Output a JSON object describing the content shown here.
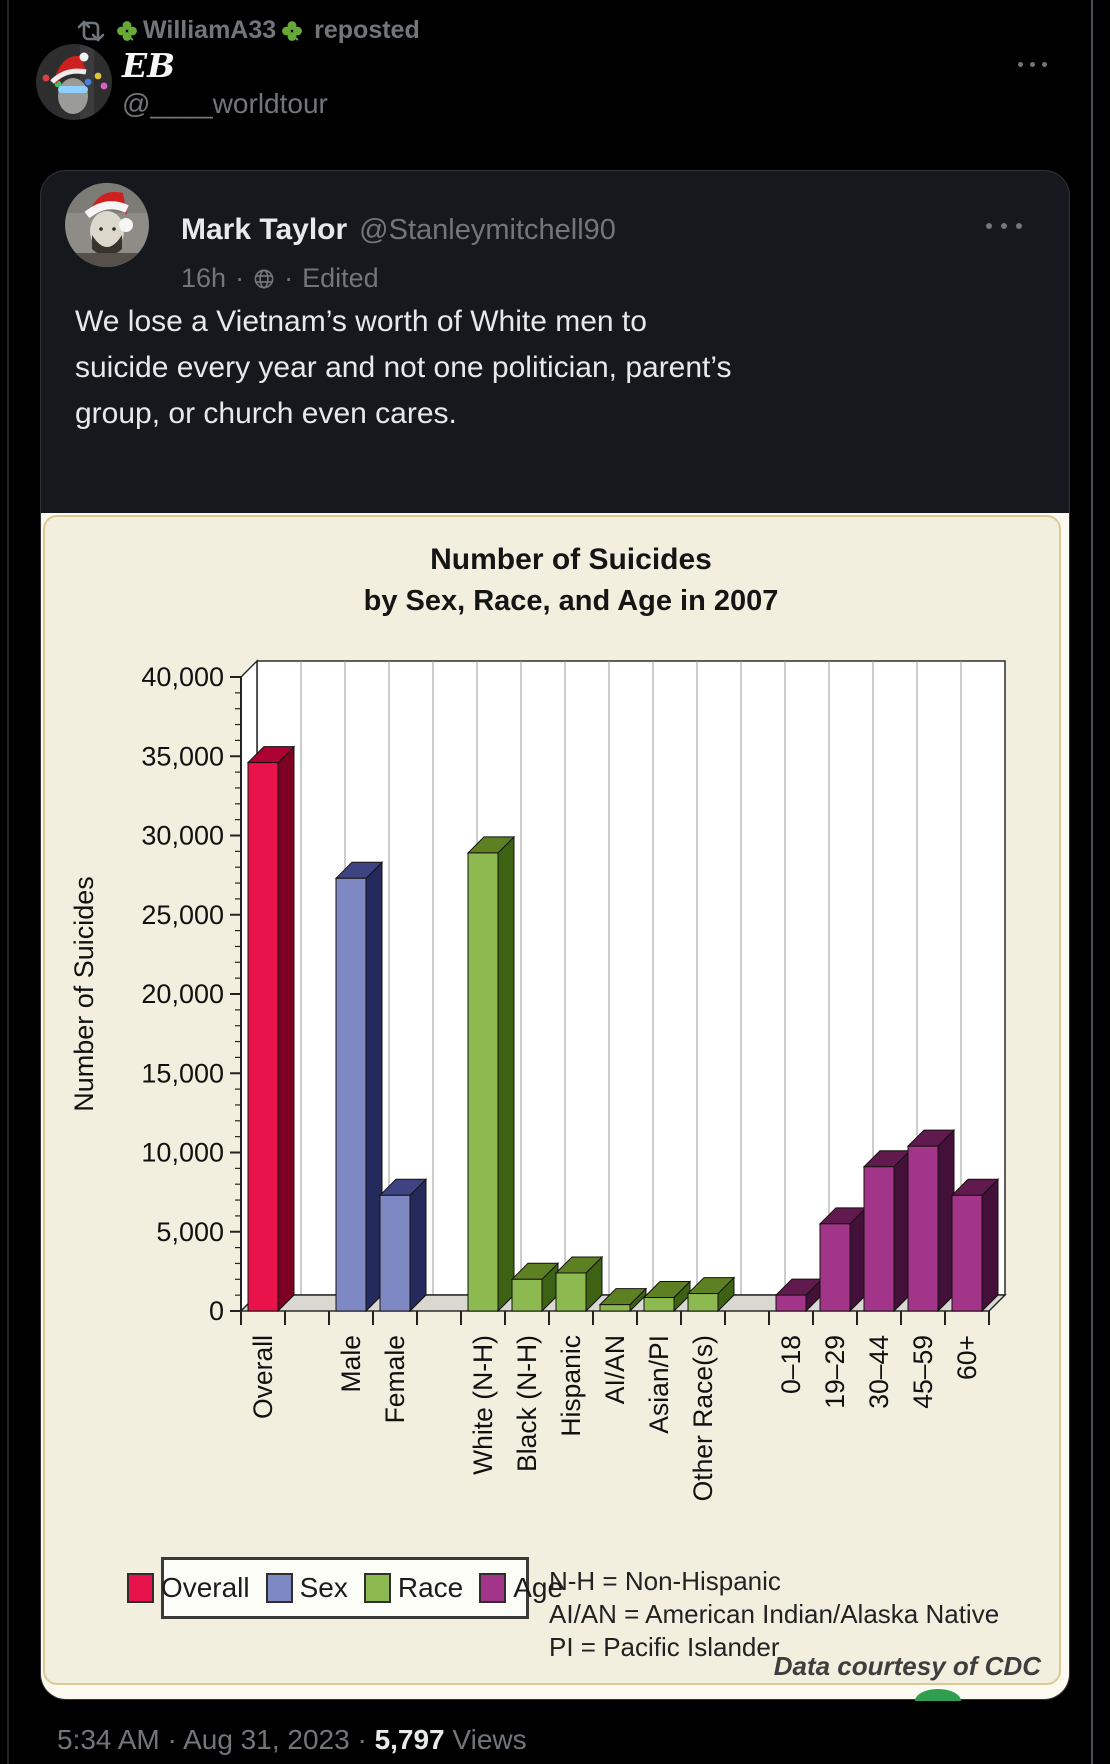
{
  "repost_banner": {
    "reposter": "WilliamA33",
    "action": "reposted"
  },
  "author": {
    "name": "EB",
    "handle": "@____worldtour"
  },
  "quote": {
    "name": "Mark Taylor",
    "handle": "@Stanleymitchell90",
    "time": "16h",
    "edited_label": "Edited",
    "sep": "·",
    "text": "We lose a Vietnam’s worth of White men to suicide every year and not one politician, parent’s group, or church even cares.",
    "text_lines": [
      "We lose a Vietnam’s worth of White men to",
      "suicide every year and not one politician, parent’s",
      "group, or church even cares."
    ]
  },
  "footer": {
    "time": "5:34 AM",
    "date": "Aug 31, 2023",
    "views_count": "5,797",
    "views_label": "Views",
    "sep": "·"
  },
  "chart_data": {
    "type": "bar",
    "title": "Number of Suicides",
    "subtitle": "by Sex, Race, and Age in 2007",
    "ylabel": "Number of Suicides",
    "xlabel": "",
    "ylim": [
      0,
      40000
    ],
    "ytick_step": 5000,
    "ytick_minor_step": 1000,
    "grid": "vertical",
    "style": "3d-bars",
    "categories": [
      "Overall",
      "Male",
      "Female",
      "White (N-H)",
      "Black (N-H)",
      "Hispanic",
      "AI/AN",
      "Asian/PI",
      "Other Race(s)",
      "0–18",
      "19–29",
      "30–44",
      "45–59",
      "60+"
    ],
    "values": [
      34600,
      27300,
      7300,
      28900,
      2000,
      2400,
      400,
      850,
      1100,
      1000,
      5500,
      9100,
      10400,
      7300
    ],
    "groups": [
      "overall",
      "sex",
      "sex",
      "race",
      "race",
      "race",
      "race",
      "race",
      "race",
      "age",
      "age",
      "age",
      "age",
      "age"
    ],
    "slots": [
      0,
      2,
      3,
      5,
      6,
      7,
      8,
      9,
      10,
      12,
      13,
      14,
      15,
      16
    ],
    "total_slots": 17,
    "group_colors": {
      "overall": {
        "front": "#e8134b",
        "side": "#7e0023",
        "top": "#ad0134"
      },
      "sex": {
        "front": "#7e88c3",
        "side": "#252a5c",
        "top": "#3e4483"
      },
      "race": {
        "front": "#8cba50",
        "side": "#3e6214",
        "top": "#5d8122"
      },
      "age": {
        "front": "#a23589",
        "side": "#43103a",
        "top": "#611a4e"
      }
    },
    "legend": [
      {
        "label": "Overall",
        "color": "#e8134b"
      },
      {
        "label": "Sex",
        "color": "#7e88c3"
      },
      {
        "label": "Race",
        "color": "#8cba50"
      },
      {
        "label": "Age",
        "color": "#a23589"
      }
    ],
    "legend_position": "bottom-left",
    "notes": [
      "N-H = Non-Hispanic",
      "AI/AN = American Indian/Alaska Native",
      "PI = Pacific Islander"
    ],
    "credit": "Data courtesy of CDC"
  }
}
